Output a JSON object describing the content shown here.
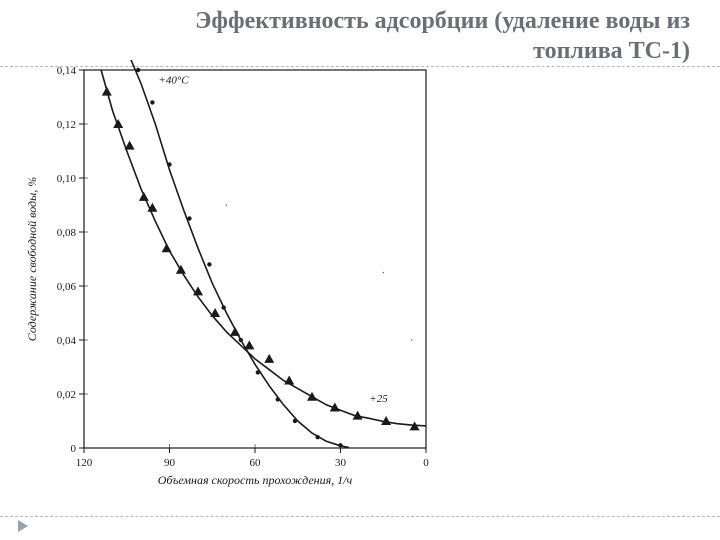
{
  "slide": {
    "title": "Эффективность адсорбции (удаление воды из топлива ТС-1)",
    "title_fontsize_pt": 18,
    "title_color": "#6a6f74",
    "rule_color": "#b9b9b9",
    "playmark_color": "#9aa1a8",
    "background": "#ffffff"
  },
  "chart": {
    "type": "scatter+line",
    "background": "#ffffff",
    "frame_color": "#1a1a1a",
    "frame_width": 1.2,
    "tick_fontsize_pt": 11,
    "label_fontsize_pt": 12,
    "tick_color": "#1a1a1a",
    "x_axis": {
      "label": "Объемная скорость прохождения, 1/ч",
      "min": 0,
      "max": 120,
      "reversed": true,
      "ticks": [
        120,
        90,
        60,
        30,
        0
      ],
      "tick_labels": [
        "120",
        "90",
        "60",
        "30",
        "0"
      ]
    },
    "y_axis": {
      "label": "Содержание свободной воды, %",
      "min": 0,
      "max": 0.14,
      "ticks": [
        0,
        0.02,
        0.04,
        0.06,
        0.08,
        0.1,
        0.12,
        0.14
      ],
      "tick_labels": [
        "0",
        "0,02",
        "0,04",
        "0,06",
        "0,08",
        "0,10",
        "0,12",
        "0,14"
      ]
    },
    "series": [
      {
        "name": "+40°C",
        "label": "+40°С",
        "label_xy": [
          96,
          0.135
        ],
        "marker": "circle",
        "marker_size": 4,
        "marker_color": "#1a1a1a",
        "line_color": "#1a1a1a",
        "line_width": 1.6,
        "points": [
          [
            101,
            0.14
          ],
          [
            96,
            0.128
          ],
          [
            90,
            0.105
          ],
          [
            83,
            0.085
          ],
          [
            76,
            0.068
          ],
          [
            71,
            0.052
          ],
          [
            65,
            0.04
          ],
          [
            59,
            0.028
          ],
          [
            52,
            0.018
          ],
          [
            46,
            0.01
          ],
          [
            38,
            0.004
          ],
          [
            30,
            0.001
          ]
        ],
        "curve": [
          [
            104,
            0.145
          ],
          [
            100,
            0.135
          ],
          [
            95,
            0.12
          ],
          [
            90,
            0.103
          ],
          [
            85,
            0.088
          ],
          [
            80,
            0.074
          ],
          [
            75,
            0.061
          ],
          [
            70,
            0.05
          ],
          [
            65,
            0.04
          ],
          [
            60,
            0.031
          ],
          [
            55,
            0.023
          ],
          [
            50,
            0.016
          ],
          [
            45,
            0.01
          ],
          [
            40,
            0.0055
          ],
          [
            35,
            0.0025
          ],
          [
            30,
            0.0008
          ],
          [
            27,
            0.0002
          ]
        ]
      },
      {
        "name": "+25",
        "label": "+25",
        "label_xy": [
          22,
          0.017
        ],
        "marker": "triangle",
        "marker_size": 5,
        "marker_color": "#1a1a1a",
        "line_color": "#1a1a1a",
        "line_width": 1.6,
        "points": [
          [
            112,
            0.132
          ],
          [
            108,
            0.12
          ],
          [
            104,
            0.112
          ],
          [
            99,
            0.093
          ],
          [
            96,
            0.089
          ],
          [
            91,
            0.074
          ],
          [
            86,
            0.066
          ],
          [
            80,
            0.058
          ],
          [
            74,
            0.05
          ],
          [
            67,
            0.043
          ],
          [
            62,
            0.038
          ],
          [
            55,
            0.033
          ],
          [
            48,
            0.025
          ],
          [
            40,
            0.019
          ],
          [
            32,
            0.015
          ],
          [
            24,
            0.012
          ],
          [
            14,
            0.01
          ],
          [
            4,
            0.008
          ]
        ],
        "curve": [
          [
            114,
            0.14
          ],
          [
            110,
            0.125
          ],
          [
            105,
            0.11
          ],
          [
            100,
            0.096
          ],
          [
            95,
            0.084
          ],
          [
            90,
            0.073
          ],
          [
            85,
            0.064
          ],
          [
            80,
            0.056
          ],
          [
            75,
            0.049
          ],
          [
            70,
            0.043
          ],
          [
            65,
            0.038
          ],
          [
            60,
            0.033
          ],
          [
            55,
            0.029
          ],
          [
            50,
            0.025
          ],
          [
            45,
            0.022
          ],
          [
            40,
            0.019
          ],
          [
            35,
            0.016
          ],
          [
            30,
            0.014
          ],
          [
            25,
            0.012
          ],
          [
            20,
            0.011
          ],
          [
            15,
            0.0098
          ],
          [
            10,
            0.009
          ],
          [
            5,
            0.0085
          ],
          [
            0,
            0.0082
          ]
        ]
      }
    ]
  }
}
